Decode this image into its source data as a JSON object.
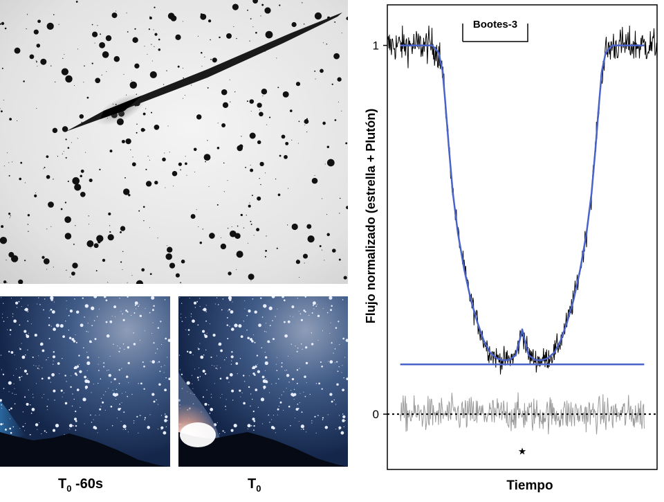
{
  "captions": {
    "left_prefix": "T",
    "left_sub": "0",
    "left_suffix": " -60s",
    "right_prefix": "T",
    "right_sub": "0"
  },
  "chart_data": {
    "type": "line",
    "title": "",
    "annotation": "Bootes-3",
    "xlabel": "Tiempo",
    "ylabel": "Flujo normalizado (estrella + Plutón)",
    "ytick_labels": [
      "0",
      "1"
    ],
    "yticks": [
      0,
      1
    ],
    "ylim": [
      -0.15,
      1.11
    ],
    "xlim": [
      -1.05,
      1.05
    ],
    "grid": false,
    "legend": "none",
    "residual_marker": "★",
    "colors": {
      "data": "#000000",
      "model": "#4a63c8",
      "residuals": "#9a9a9a",
      "zero_line": "#000000"
    },
    "series": [
      {
        "role": "model",
        "x": [
          -0.95,
          -0.7,
          -0.65,
          -0.62,
          -0.6,
          -0.57,
          -0.54,
          -0.5,
          -0.45,
          -0.4,
          -0.35,
          -0.3,
          -0.25,
          -0.2,
          -0.15,
          -0.1,
          -0.05,
          -0.02,
          0,
          0.02,
          0.05,
          0.1,
          0.15,
          0.2,
          0.25,
          0.3,
          0.35,
          0.4,
          0.45,
          0.5,
          0.54,
          0.57,
          0.6,
          0.62,
          0.65,
          0.7,
          0.95
        ],
        "y": [
          1.0,
          1.0,
          0.98,
          0.93,
          0.85,
          0.72,
          0.6,
          0.49,
          0.39,
          0.31,
          0.25,
          0.2,
          0.167,
          0.152,
          0.146,
          0.147,
          0.16,
          0.2,
          0.23,
          0.2,
          0.16,
          0.147,
          0.146,
          0.152,
          0.167,
          0.2,
          0.25,
          0.31,
          0.39,
          0.49,
          0.6,
          0.72,
          0.85,
          0.93,
          0.98,
          1.0,
          1.0
        ]
      },
      {
        "role": "baseline",
        "x": [
          -0.95,
          0.95
        ],
        "y": [
          0.135,
          0.135
        ]
      }
    ]
  }
}
